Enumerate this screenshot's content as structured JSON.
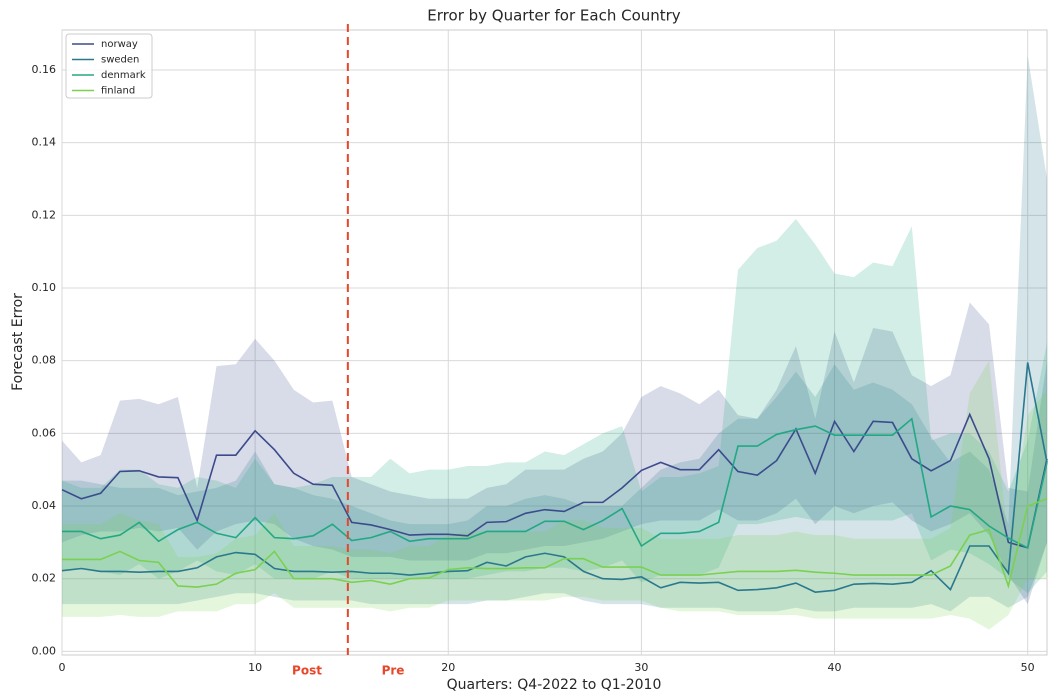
{
  "chart_data": {
    "type": "line",
    "title": "Error by Quarter for Each Country",
    "x_label": "Quarters: Q4-2022 to Q1-2010",
    "y_label": "Forecast Error",
    "x": [
      0,
      1,
      2,
      3,
      4,
      5,
      6,
      7,
      8,
      9,
      10,
      11,
      12,
      13,
      14,
      15,
      16,
      17,
      18,
      19,
      20,
      21,
      22,
      23,
      24,
      25,
      26,
      27,
      28,
      29,
      30,
      31,
      32,
      33,
      34,
      35,
      36,
      37,
      38,
      39,
      40,
      41,
      42,
      43,
      44,
      45,
      46,
      47,
      48,
      49,
      50,
      51
    ],
    "xlim": [
      0,
      51
    ],
    "xticks": [
      0,
      10,
      20,
      30,
      40,
      50
    ],
    "ylim": [
      -0.001,
      0.171
    ],
    "yticks": [
      {
        "value": 0,
        "label": "0.00"
      },
      0.02,
      0.04,
      0.06,
      0.08,
      {
        "value": 0.1,
        "label": "0.10"
      },
      0.12,
      0.14,
      0.16
    ],
    "grid": true,
    "legend": "upper left",
    "vline": {
      "x": 14.8,
      "color": "#e8462a"
    },
    "annotations": [
      "Post",
      "Pre"
    ],
    "series": [
      {
        "name": "norway",
        "color": "#3b4b8c",
        "values": [
          0.0445,
          0.042,
          0.0435,
          0.0495,
          0.0497,
          0.048,
          0.0478,
          0.036,
          0.054,
          0.054,
          0.0607,
          0.0555,
          0.049,
          0.046,
          0.0457,
          0.0355,
          0.0348,
          0.0335,
          0.032,
          0.0322,
          0.0322,
          0.0318,
          0.0355,
          0.0357,
          0.038,
          0.039,
          0.0385,
          0.041,
          0.041,
          0.045,
          0.0498,
          0.052,
          0.05,
          0.05,
          0.0555,
          0.0495,
          0.0485,
          0.0525,
          0.0612,
          0.049,
          0.0633,
          0.055,
          0.0633,
          0.063,
          0.053,
          0.0497,
          0.0525,
          0.0652,
          0.053,
          0.03,
          0.0285,
          0.053
        ],
        "upper": [
          0.058,
          0.052,
          0.054,
          0.069,
          0.0695,
          0.068,
          0.07,
          0.045,
          0.0785,
          0.079,
          0.086,
          0.08,
          0.072,
          0.0685,
          0.069,
          0.048,
          0.046,
          0.044,
          0.043,
          0.042,
          0.042,
          0.042,
          0.045,
          0.046,
          0.05,
          0.05,
          0.05,
          0.053,
          0.055,
          0.06,
          0.07,
          0.073,
          0.071,
          0.068,
          0.072,
          0.065,
          0.064,
          0.072,
          0.084,
          0.064,
          0.088,
          0.074,
          0.089,
          0.088,
          0.076,
          0.073,
          0.076,
          0.096,
          0.09,
          0.045,
          0.044,
          0.08
        ],
        "lower": [
          0.03,
          0.032,
          0.033,
          0.033,
          0.034,
          0.033,
          0.034,
          0.028,
          0.033,
          0.035,
          0.036,
          0.035,
          0.031,
          0.029,
          0.028,
          0.026,
          0.026,
          0.026,
          0.025,
          0.025,
          0.025,
          0.025,
          0.027,
          0.027,
          0.028,
          0.029,
          0.029,
          0.03,
          0.031,
          0.033,
          0.035,
          0.036,
          0.036,
          0.036,
          0.039,
          0.036,
          0.036,
          0.038,
          0.042,
          0.035,
          0.04,
          0.038,
          0.04,
          0.041,
          0.036,
          0.033,
          0.035,
          0.038,
          0.032,
          0.021,
          0.013,
          0.03
        ]
      },
      {
        "name": "sweden",
        "color": "#2a788e",
        "values": [
          0.0222,
          0.0228,
          0.022,
          0.022,
          0.0218,
          0.022,
          0.022,
          0.023,
          0.026,
          0.0272,
          0.0267,
          0.0228,
          0.022,
          0.022,
          0.0218,
          0.022,
          0.0215,
          0.0215,
          0.021,
          0.0215,
          0.022,
          0.0222,
          0.0245,
          0.0235,
          0.026,
          0.027,
          0.026,
          0.022,
          0.02,
          0.0198,
          0.0205,
          0.0175,
          0.019,
          0.0188,
          0.019,
          0.0168,
          0.017,
          0.0175,
          0.0188,
          0.0163,
          0.0168,
          0.0185,
          0.0187,
          0.0185,
          0.019,
          0.0222,
          0.017,
          0.029,
          0.029,
          0.0215,
          0.0795,
          0.052
        ],
        "upper": [
          0.047,
          0.047,
          0.046,
          0.045,
          0.045,
          0.045,
          0.043,
          0.044,
          0.045,
          0.047,
          0.055,
          0.046,
          0.045,
          0.043,
          0.042,
          0.04,
          0.038,
          0.036,
          0.035,
          0.035,
          0.035,
          0.036,
          0.04,
          0.04,
          0.042,
          0.043,
          0.042,
          0.04,
          0.04,
          0.04,
          0.045,
          0.05,
          0.052,
          0.053,
          0.06,
          0.064,
          0.064,
          0.07,
          0.077,
          0.07,
          0.079,
          0.072,
          0.074,
          0.072,
          0.068,
          0.059,
          0.052,
          0.055,
          0.05,
          0.035,
          0.164,
          0.13
        ],
        "lower": [
          0.013,
          0.013,
          0.013,
          0.013,
          0.013,
          0.013,
          0.013,
          0.014,
          0.015,
          0.016,
          0.016,
          0.015,
          0.014,
          0.014,
          0.014,
          0.014,
          0.013,
          0.013,
          0.013,
          0.013,
          0.013,
          0.013,
          0.014,
          0.014,
          0.015,
          0.016,
          0.016,
          0.014,
          0.013,
          0.013,
          0.013,
          0.012,
          0.012,
          0.012,
          0.012,
          0.011,
          0.011,
          0.011,
          0.012,
          0.011,
          0.011,
          0.012,
          0.012,
          0.012,
          0.012,
          0.013,
          0.011,
          0.015,
          0.015,
          0.012,
          0.015,
          0.03
        ]
      },
      {
        "name": "denmark",
        "color": "#22a884",
        "values": [
          0.033,
          0.033,
          0.031,
          0.032,
          0.0355,
          0.0303,
          0.0335,
          0.0355,
          0.0325,
          0.0313,
          0.0368,
          0.0313,
          0.031,
          0.0318,
          0.035,
          0.0305,
          0.0313,
          0.033,
          0.0303,
          0.031,
          0.031,
          0.031,
          0.033,
          0.033,
          0.033,
          0.0358,
          0.0358,
          0.0335,
          0.036,
          0.0393,
          0.029,
          0.0325,
          0.0325,
          0.033,
          0.0355,
          0.0565,
          0.0565,
          0.0597,
          0.061,
          0.062,
          0.0595,
          0.0595,
          0.0595,
          0.0595,
          0.064,
          0.037,
          0.04,
          0.039,
          0.0345,
          0.0312,
          0.0285,
          0.052
        ],
        "upper": [
          0.047,
          0.045,
          0.045,
          0.05,
          0.05,
          0.046,
          0.045,
          0.048,
          0.047,
          0.045,
          0.053,
          0.046,
          0.045,
          0.046,
          0.048,
          0.048,
          0.048,
          0.053,
          0.049,
          0.05,
          0.05,
          0.051,
          0.051,
          0.052,
          0.052,
          0.055,
          0.054,
          0.057,
          0.06,
          0.062,
          0.044,
          0.048,
          0.048,
          0.049,
          0.051,
          0.105,
          0.111,
          0.113,
          0.119,
          0.112,
          0.104,
          0.103,
          0.107,
          0.106,
          0.117,
          0.058,
          0.06,
          0.06,
          0.055,
          0.044,
          0.058,
          0.085
        ],
        "lower": [
          0.022,
          0.023,
          0.022,
          0.021,
          0.024,
          0.02,
          0.022,
          0.025,
          0.022,
          0.021,
          0.024,
          0.02,
          0.02,
          0.02,
          0.022,
          0.02,
          0.02,
          0.02,
          0.02,
          0.02,
          0.02,
          0.02,
          0.021,
          0.022,
          0.022,
          0.023,
          0.023,
          0.022,
          0.023,
          0.025,
          0.019,
          0.021,
          0.021,
          0.021,
          0.023,
          0.035,
          0.035,
          0.036,
          0.037,
          0.036,
          0.036,
          0.036,
          0.036,
          0.036,
          0.038,
          0.025,
          0.028,
          0.027,
          0.024,
          0.02,
          0.016,
          0.022
        ]
      },
      {
        "name": "finland",
        "color": "#7ad151",
        "values": [
          0.0253,
          0.0253,
          0.0253,
          0.0275,
          0.025,
          0.0245,
          0.018,
          0.0177,
          0.0185,
          0.0215,
          0.0225,
          0.0275,
          0.02,
          0.02,
          0.02,
          0.019,
          0.0195,
          0.0185,
          0.02,
          0.0202,
          0.0225,
          0.023,
          0.0228,
          0.0228,
          0.023,
          0.023,
          0.0255,
          0.0255,
          0.0232,
          0.0232,
          0.0232,
          0.021,
          0.021,
          0.021,
          0.0215,
          0.022,
          0.022,
          0.022,
          0.0223,
          0.0218,
          0.0215,
          0.021,
          0.021,
          0.021,
          0.021,
          0.021,
          0.0235,
          0.032,
          0.0335,
          0.018,
          0.04,
          0.042
        ],
        "upper": [
          0.035,
          0.035,
          0.035,
          0.038,
          0.036,
          0.035,
          0.026,
          0.026,
          0.027,
          0.031,
          0.032,
          0.038,
          0.029,
          0.029,
          0.029,
          0.028,
          0.028,
          0.027,
          0.029,
          0.029,
          0.032,
          0.033,
          0.033,
          0.033,
          0.033,
          0.033,
          0.036,
          0.036,
          0.034,
          0.034,
          0.034,
          0.031,
          0.031,
          0.031,
          0.031,
          0.032,
          0.032,
          0.032,
          0.033,
          0.032,
          0.032,
          0.031,
          0.031,
          0.031,
          0.031,
          0.031,
          0.034,
          0.071,
          0.08,
          0.03,
          0.065,
          0.072
        ],
        "lower": [
          0.0095,
          0.0095,
          0.0095,
          0.01,
          0.0095,
          0.0095,
          0.011,
          0.011,
          0.011,
          0.013,
          0.013,
          0.016,
          0.012,
          0.012,
          0.012,
          0.012,
          0.012,
          0.011,
          0.012,
          0.012,
          0.014,
          0.014,
          0.014,
          0.014,
          0.014,
          0.014,
          0.015,
          0.015,
          0.014,
          0.014,
          0.014,
          0.012,
          0.011,
          0.011,
          0.011,
          0.01,
          0.01,
          0.01,
          0.01,
          0.009,
          0.009,
          0.009,
          0.009,
          0.009,
          0.009,
          0.009,
          0.01,
          0.009,
          0.006,
          0.01,
          0.02,
          0.02
        ]
      }
    ]
  }
}
